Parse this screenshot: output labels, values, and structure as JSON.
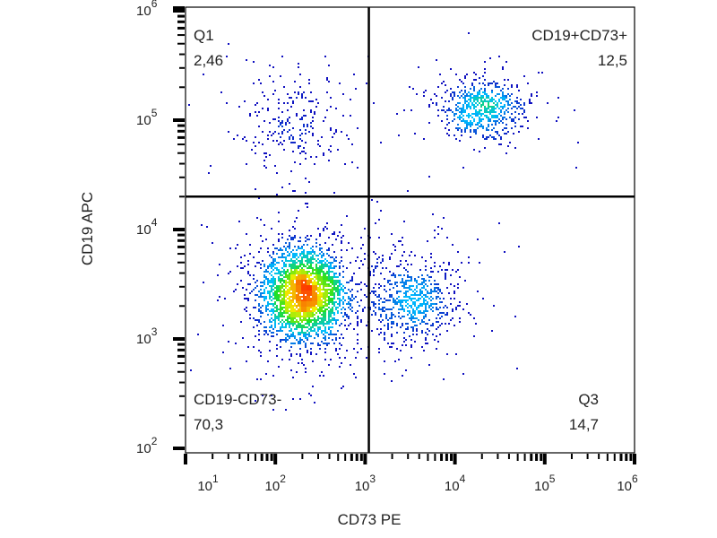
{
  "chart_data": {
    "type": "scatter",
    "subtype": "flow-cytometry density dot plot",
    "xlabel": "CD73 PE",
    "ylabel": "CD19 APC",
    "x_scale": "log",
    "y_scale": "log",
    "xlim": [
      10,
      1000000
    ],
    "ylim": [
      100,
      1200000
    ],
    "x_ticks": [
      {
        "base": "10",
        "exp": "1"
      },
      {
        "base": "10",
        "exp": "2"
      },
      {
        "base": "10",
        "exp": "3"
      },
      {
        "base": "10",
        "exp": "4"
      },
      {
        "base": "10",
        "exp": "5"
      },
      {
        "base": "10",
        "exp": "6"
      }
    ],
    "y_ticks": [
      {
        "base": "10",
        "exp": "2"
      },
      {
        "base": "10",
        "exp": "3"
      },
      {
        "base": "10",
        "exp": "4"
      },
      {
        "base": "10",
        "exp": "5"
      },
      {
        "base": "10",
        "exp": "6"
      }
    ],
    "quadrant_gate": {
      "x": 1100,
      "y": 20000
    },
    "grid": false,
    "colormap": [
      "#1010c0",
      "#00c0ff",
      "#20e020",
      "#f0f000",
      "#ff2000"
    ],
    "quadrants": [
      {
        "name": "Q1",
        "value": "2,46",
        "percent": 2.46
      },
      {
        "name": "CD19+CD73+",
        "value": "12,5",
        "percent": 12.5
      },
      {
        "name": "CD19-CD73-",
        "value": "70,3",
        "percent": 70.3
      },
      {
        "name": "Q3",
        "value": "14,7",
        "percent": 14.7
      }
    ],
    "populations": [
      {
        "quadrant": "CD19-CD73-",
        "x_center": 200,
        "y_center": 2600
      },
      {
        "quadrant": "Q3",
        "x_center": 3300,
        "y_center": 2300
      },
      {
        "quadrant": "CD19+CD73+",
        "x_center": 20000,
        "y_center": 130000
      },
      {
        "quadrant": "Q1",
        "x_center": 150,
        "y_center": 100000
      }
    ]
  }
}
